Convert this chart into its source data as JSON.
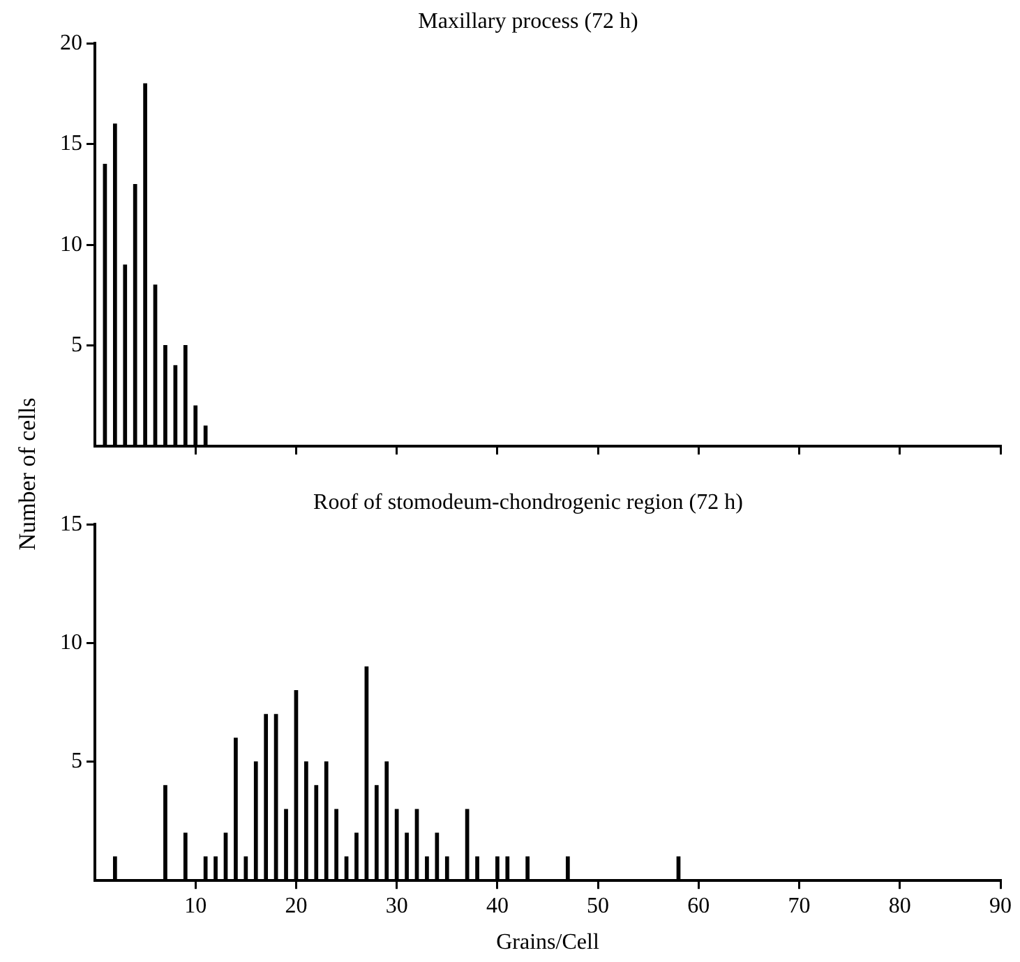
{
  "chart_data": [
    {
      "type": "bar",
      "title": "Maxillary process (72 h)",
      "ylabel": "Number of cells",
      "x": [
        1,
        2,
        3,
        4,
        5,
        6,
        7,
        8,
        9,
        10,
        11
      ],
      "values": [
        14,
        16,
        9,
        13,
        18,
        8,
        5,
        4,
        5,
        2,
        1
      ],
      "color": "#000000",
      "xlim": [
        0,
        90
      ],
      "xticks": [
        10,
        20,
        30,
        40,
        50,
        60,
        70,
        80,
        90
      ],
      "ylim": [
        0,
        20
      ],
      "yticks": [
        5,
        10,
        15,
        20
      ],
      "tick_labels": "y",
      "grid": false,
      "legend": false
    },
    {
      "type": "bar",
      "title": "Roof of stomodeum-chondrogenic region (72 h)",
      "xlabel": "Grains/Cell",
      "x": [
        2,
        7,
        9,
        11,
        12,
        13,
        14,
        15,
        16,
        17,
        18,
        19,
        20,
        21,
        22,
        23,
        24,
        25,
        26,
        27,
        28,
        29,
        30,
        31,
        32,
        33,
        34,
        35,
        37,
        38,
        40,
        41,
        43,
        47,
        58
      ],
      "values": [
        1,
        4,
        2,
        1,
        1,
        2,
        6,
        1,
        5,
        7,
        7,
        3,
        8,
        5,
        4,
        5,
        3,
        1,
        2,
        9,
        4,
        5,
        3,
        2,
        3,
        1,
        2,
        1,
        3,
        1,
        1,
        1,
        1,
        1,
        1
      ],
      "color": "#000000",
      "xlim": [
        0,
        90
      ],
      "xticks": [
        10,
        20,
        30,
        40,
        50,
        60,
        70,
        80,
        90
      ],
      "ylim": [
        0,
        15
      ],
      "yticks": [
        5,
        10,
        15
      ],
      "grid": false,
      "legend": false
    }
  ]
}
